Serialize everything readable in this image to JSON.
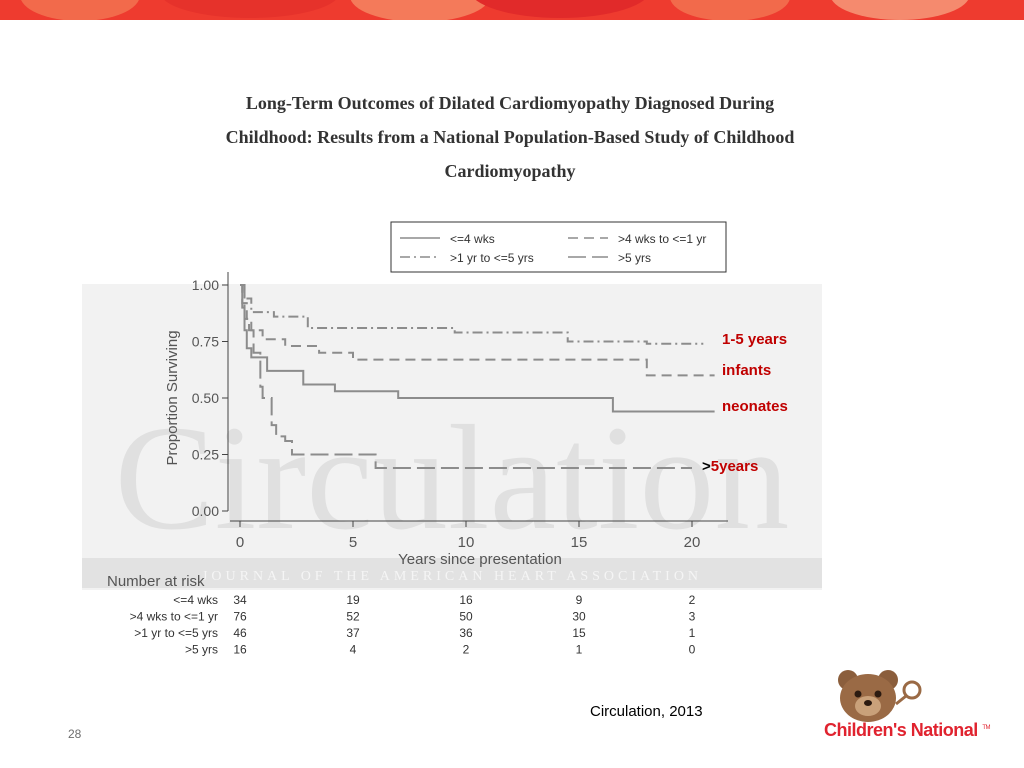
{
  "title_lines": [
    "Long-Term Outcomes of Dilated Cardiomyopathy Diagnosed During",
    "Childhood: Results from a National Population-Based Study of Childhood",
    "Cardiomyopathy"
  ],
  "chart_data": {
    "type": "line",
    "xlabel": "Years since presentation",
    "ylabel": "Proportion Surviving",
    "xlim": [
      0,
      20
    ],
    "ylim": [
      0,
      1
    ],
    "xticks": [
      "0",
      "5",
      "10",
      "15",
      "20"
    ],
    "yticks": [
      "0.00",
      "0.25",
      "0.50",
      "0.75",
      "1.00"
    ],
    "legend_position": "top",
    "watermark": "Circulation",
    "watermark_subtitle": "JOURNAL OF THE AMERICAN HEART ASSOCIATION",
    "series": [
      {
        "name": "<=4 wks",
        "style": "solid",
        "x": [
          0,
          0.1,
          0.2,
          0.3,
          0.5,
          1.2,
          2.8,
          4.2,
          7.0,
          13.0,
          16.5,
          21.0
        ],
        "y": [
          1.0,
          0.9,
          0.8,
          0.72,
          0.68,
          0.62,
          0.56,
          0.53,
          0.5,
          0.5,
          0.44,
          0.44
        ]
      },
      {
        "name": ">4 wks to <=1 yr",
        "style": "dashed",
        "x": [
          0,
          0.1,
          0.3,
          0.5,
          1.0,
          2.0,
          3.5,
          5.0,
          18.0,
          21.0
        ],
        "y": [
          1.0,
          0.92,
          0.85,
          0.8,
          0.76,
          0.73,
          0.7,
          0.67,
          0.6,
          0.6
        ]
      },
      {
        "name": ">1 yr to <=5 yrs",
        "style": "dash-dot",
        "x": [
          0,
          0.2,
          0.5,
          1.5,
          3.0,
          9.5,
          14.5,
          18.0,
          20.5
        ],
        "y": [
          1.0,
          0.94,
          0.88,
          0.86,
          0.81,
          0.79,
          0.75,
          0.74,
          0.74
        ]
      },
      {
        "name": ">5 yrs",
        "style": "long-dash",
        "x": [
          0,
          0.2,
          0.4,
          0.6,
          0.9,
          1.0,
          1.4,
          1.6,
          2.0,
          2.3,
          6.0,
          20.0
        ],
        "y": [
          1.0,
          0.85,
          0.8,
          0.7,
          0.55,
          0.5,
          0.38,
          0.33,
          0.31,
          0.25,
          0.19,
          0.19
        ]
      }
    ],
    "risk_table": {
      "title": "Number at risk",
      "time_points": [
        0,
        5,
        10,
        15,
        20
      ],
      "rows": [
        {
          "label": "<=4 wks",
          "values": [
            "34",
            "19",
            "16",
            "9",
            "2"
          ]
        },
        {
          "label": ">4 wks to <=1 yr",
          "values": [
            "76",
            "52",
            "50",
            "30",
            "3"
          ]
        },
        {
          "label": ">1 yr to <=5 yrs",
          "values": [
            "46",
            "37",
            "36",
            "15",
            "1"
          ]
        },
        {
          "label": ">5 yrs",
          "values": [
            "16",
            "4",
            "2",
            "1",
            "0"
          ]
        }
      ]
    },
    "annotations": [
      "1-5 years",
      "infants",
      "neonates",
      ">5years"
    ]
  },
  "callouts": {
    "c1": "1-5 years",
    "c2": "infants",
    "c3": "neonates",
    "c4_prefix": ">",
    "c4_rest": "5years"
  },
  "source": "Circulation, 2013",
  "page_number": "28",
  "logo": {
    "text": "Children's National",
    "tm": "TM"
  },
  "colors": {
    "accent": "#c00000",
    "brand_red": "#e0232f",
    "band_red": "#ee3b2f",
    "series_gray": "#8c8c8c"
  }
}
